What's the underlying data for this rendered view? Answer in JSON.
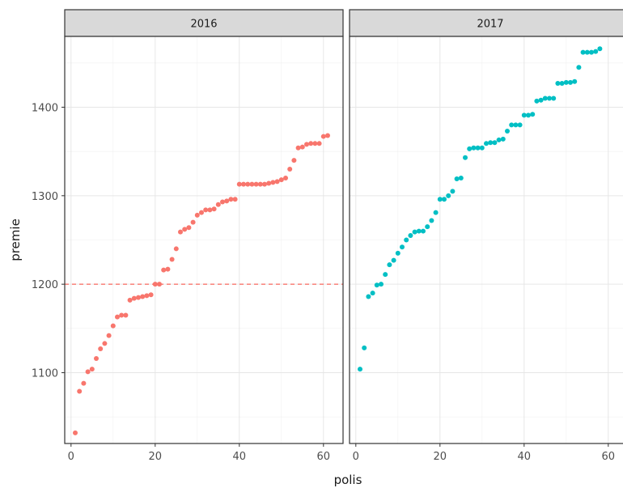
{
  "chart_data": {
    "type": "scatter",
    "xlabel": "polis",
    "ylabel": "premie",
    "xlim": [
      -1.5,
      62.5
    ],
    "ylim": [
      1020,
      1480
    ],
    "x_ticks": [
      0,
      20,
      40,
      60
    ],
    "y_ticks": [
      1100,
      1200,
      1300,
      1400
    ],
    "grid": true,
    "legend": "none",
    "reference_line": {
      "y": 1200,
      "style": "dashed",
      "color": "#F8766D",
      "panel": "2016"
    },
    "panels": [
      {
        "label": "2016",
        "color": "#F8766D",
        "x": [
          1,
          2,
          3,
          4,
          5,
          6,
          7,
          8,
          9,
          10,
          11,
          12,
          13,
          14,
          15,
          16,
          17,
          18,
          19,
          20,
          21,
          22,
          23,
          24,
          25,
          26,
          27,
          28,
          29,
          30,
          31,
          32,
          33,
          34,
          35,
          36,
          37,
          38,
          39,
          40,
          41,
          42,
          43,
          44,
          45,
          46,
          47,
          48,
          49,
          50,
          51,
          52,
          53,
          54,
          55,
          56,
          57,
          58,
          59,
          60,
          61
        ],
        "y": [
          1032,
          1079,
          1088,
          1101,
          1104,
          1116,
          1127,
          1133,
          1142,
          1153,
          1163,
          1165,
          1165,
          1182,
          1184,
          1185,
          1186,
          1187,
          1188,
          1200,
          1200,
          1216,
          1217,
          1228,
          1240,
          1259,
          1262,
          1264,
          1270,
          1278,
          1281,
          1284,
          1284,
          1285,
          1290,
          1293,
          1294,
          1296,
          1296,
          1313,
          1313,
          1313,
          1313,
          1313,
          1313,
          1313,
          1314,
          1315,
          1316,
          1318,
          1320,
          1330,
          1340,
          1354,
          1355,
          1358,
          1359,
          1359,
          1359,
          1367,
          1368
        ]
      },
      {
        "label": "2017",
        "color": "#00BFC4",
        "x": [
          1,
          2,
          3,
          4,
          5,
          6,
          7,
          8,
          9,
          10,
          11,
          12,
          13,
          14,
          15,
          16,
          17,
          18,
          19,
          20,
          21,
          22,
          23,
          24,
          25,
          26,
          27,
          28,
          29,
          30,
          31,
          32,
          33,
          34,
          35,
          36,
          37,
          38,
          39,
          40,
          41,
          42,
          43,
          44,
          45,
          46,
          47,
          48,
          49,
          50,
          51,
          52,
          53,
          54,
          55,
          56,
          57,
          58
        ],
        "y": [
          1104,
          1128,
          1186,
          1190,
          1199,
          1200,
          1211,
          1222,
          1227,
          1235,
          1242,
          1250,
          1255,
          1259,
          1260,
          1260,
          1265,
          1272,
          1281,
          1296,
          1296,
          1300,
          1305,
          1319,
          1320,
          1343,
          1353,
          1354,
          1354,
          1354,
          1359,
          1360,
          1360,
          1363,
          1364,
          1373,
          1380,
          1380,
          1380,
          1391,
          1391,
          1392,
          1407,
          1408,
          1410,
          1410,
          1410,
          1427,
          1427,
          1428,
          1428,
          1429,
          1445,
          1462,
          1462,
          1462,
          1463,
          1466
        ]
      }
    ]
  }
}
